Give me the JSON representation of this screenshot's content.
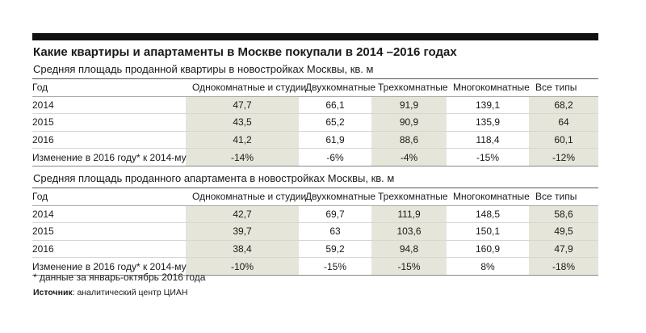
{
  "title": "Какие квартиры и апартаменты в Москве покупали в 2014 –2016 годах",
  "tables": [
    {
      "subtitle": "Средняя площадь проданной квартиры в новостройках Москвы, кв. м",
      "headers": [
        "Год",
        "Однокомнатные и студии",
        "Двухкомнатные",
        "Трехкомнатные",
        "Многокомнатные",
        "Все типы"
      ],
      "rows": [
        [
          "2014",
          "47,7",
          "66,1",
          "91,9",
          "139,1",
          "68,2"
        ],
        [
          "2015",
          "43,5",
          "65,2",
          "90,9",
          "135,9",
          "64"
        ],
        [
          "2016",
          "41,2",
          "61,9",
          "88,6",
          "118,4",
          "60,1"
        ],
        [
          "Изменение в 2016 году* к 2014-му",
          "-14%",
          "-6%",
          "-4%",
          "-15%",
          "-12%"
        ]
      ]
    },
    {
      "subtitle": "Средняя площадь проданного апартамента в новостройках Москвы, кв. м",
      "headers": [
        "Год",
        "Однокомнатные и студии",
        "Двухкомнатные",
        "Трехкомнатные",
        "Многокомнатные",
        "Все типы"
      ],
      "rows": [
        [
          "2014",
          "42,7",
          "69,7",
          "111,9",
          "148,5",
          "58,6"
        ],
        [
          "2015",
          "39,7",
          "63",
          "103,6",
          "150,1",
          "49,5"
        ],
        [
          "2016",
          "38,4",
          "59,2",
          "94,8",
          "160,9",
          "47,9"
        ],
        [
          "Изменение в 2016 году* к 2014-му",
          "-10%",
          "-15%",
          "-15%",
          "8%",
          "-18%"
        ]
      ]
    }
  ],
  "footnote": "* данные за январь-октябрь 2016 года",
  "source": {
    "label": "Источник",
    "text": ": аналитический центр ЦИАН"
  }
}
